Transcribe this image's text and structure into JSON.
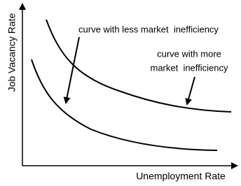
{
  "axes": {
    "y_label": "Job Vacancy Rate",
    "x_label": "Unemployment Rate"
  },
  "annotations": [
    {
      "lines": [
        "curve with less market  inefficiency"
      ]
    },
    {
      "lines": [
        "curve with more",
        "market  inefficiency"
      ]
    }
  ]
}
